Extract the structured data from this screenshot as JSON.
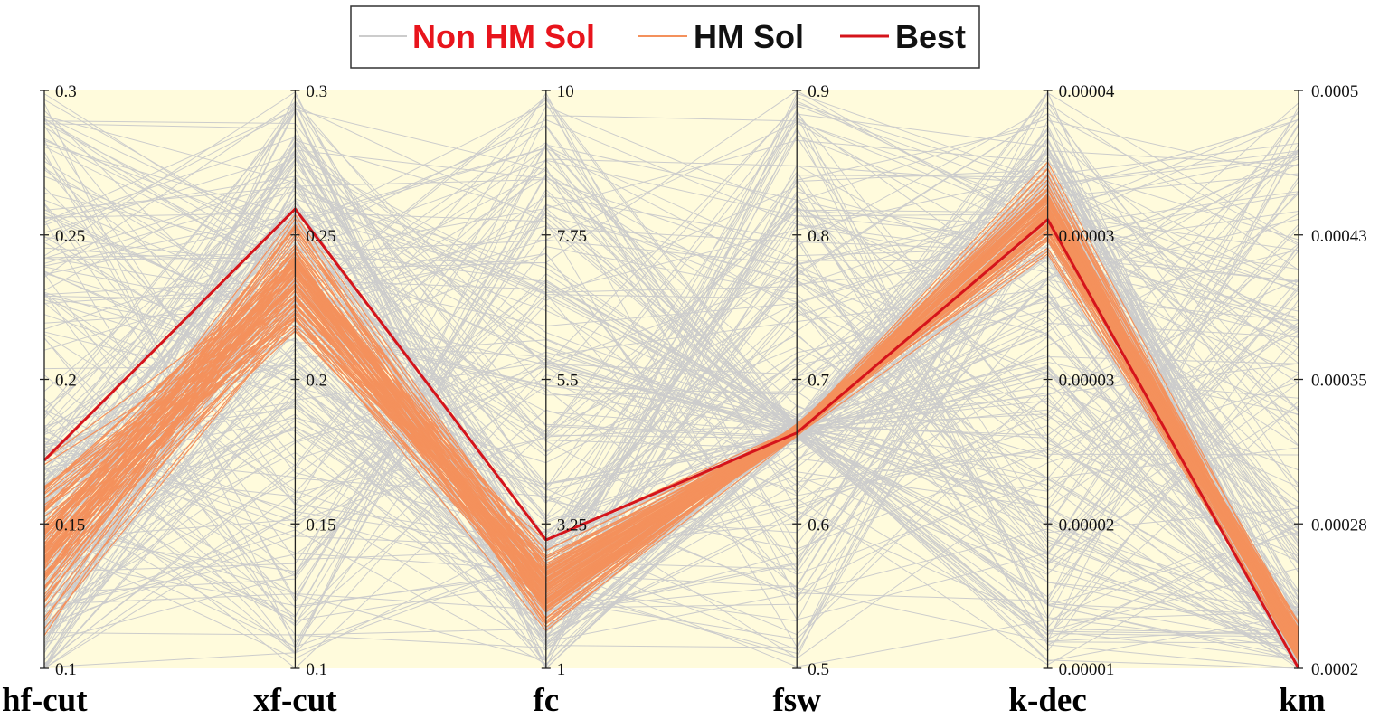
{
  "chart_data": {
    "type": "parallel-coordinates",
    "legend": [
      {
        "label": "Non HM Sol",
        "line_color": "#cccccc",
        "text_color": "#e8141c"
      },
      {
        "label": "HM Sol",
        "line_color": "#f4915c",
        "text_color": "#111111"
      },
      {
        "label": "Best",
        "line_color": "#d5141b",
        "text_color": "#111111"
      }
    ],
    "axes": [
      {
        "name": "hf-cut",
        "range": [
          0.1,
          0.3
        ],
        "ticks": [
          "0.3",
          "0.25",
          "0.2",
          "0.15",
          "0.1"
        ],
        "label_side": "right"
      },
      {
        "name": "xf-cut",
        "range": [
          0.1,
          0.3
        ],
        "ticks": [
          "0.3",
          "0.25",
          "0.2",
          "0.15",
          "0.1"
        ],
        "label_side": "right"
      },
      {
        "name": "fc",
        "range": [
          1,
          10
        ],
        "ticks": [
          "10",
          "7.75",
          "5.5",
          "3.25",
          "1"
        ],
        "label_side": "right"
      },
      {
        "name": "fsw",
        "range": [
          0.5,
          0.9
        ],
        "ticks": [
          "0.9",
          "0.8",
          "0.7",
          "0.6",
          "0.5"
        ],
        "label_side": "right"
      },
      {
        "name": "k-dec",
        "range": [
          1e-05,
          4e-05
        ],
        "ticks": [
          "0.00004",
          "0.00003",
          "0.00003",
          "0.00002",
          "0.00001"
        ],
        "label_side": "right"
      },
      {
        "name": "km",
        "range": [
          0.0002,
          0.0005
        ],
        "ticks": [
          "0.0005",
          "0.00043",
          "0.00035",
          "0.00028",
          "0.0002"
        ],
        "label_side": "right"
      }
    ],
    "best_solution": [
      0.172,
      0.259,
      3.0,
      0.663,
      3.33e-05,
      0.0002
    ],
    "hm_solution_bands": [
      {
        "center": 0.14,
        "spread": 0.04
      },
      {
        "center": 0.235,
        "spread": 0.028
      },
      {
        "center": 2.3,
        "spread": 0.85
      },
      {
        "center": 0.665,
        "spread": 0.006
      },
      {
        "center": 3.38e-05,
        "spread": 3e-06
      },
      {
        "center": 0.000212,
        "spread": 1.5e-05
      }
    ],
    "hm_solution_count": 90,
    "non_hm_solution_count": 260,
    "colors": {
      "plot_background": "#fffbdc",
      "axis": "#222222",
      "background": "#ffffff"
    }
  }
}
